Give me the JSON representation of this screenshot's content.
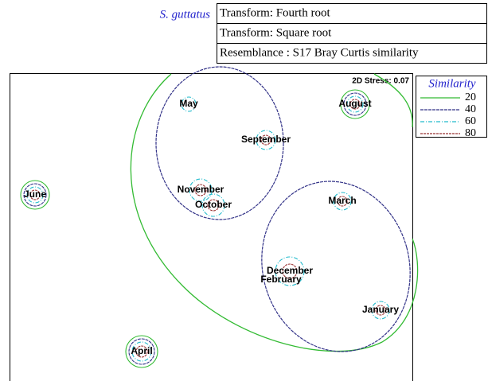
{
  "header": {
    "species": "S. guttatus",
    "info": [
      "Transform: Fourth root",
      "Transform: Square root",
      "Resemblance : S17 Bray Curtis similarity"
    ]
  },
  "plot": {
    "stress": "2D Stress: 0.07",
    "points": [
      "May",
      "August",
      "September",
      "June",
      "November",
      "October",
      "March",
      "December",
      "February",
      "January",
      "April"
    ]
  },
  "legend": {
    "title": "Similarity",
    "levels": [
      20,
      40,
      60,
      80
    ]
  }
}
